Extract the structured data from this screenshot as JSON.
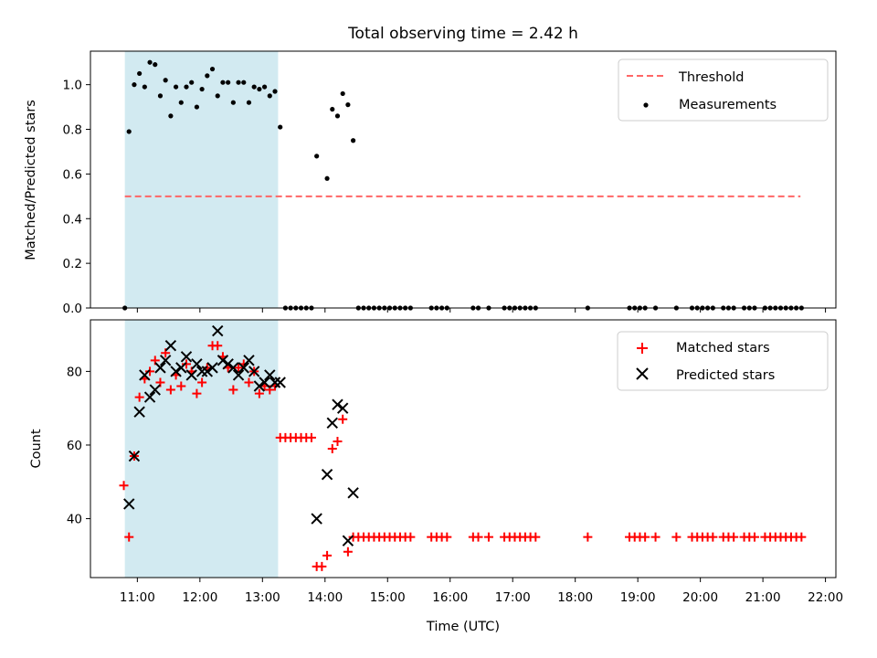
{
  "chart_data": [
    {
      "type": "scatter",
      "title": "Total observing time = 2.42 h",
      "ylabel": "Matched/Predicted stars",
      "xlabel": "",
      "xlim": [
        "10:15",
        "22:10"
      ],
      "ylim": [
        0,
        1.15
      ],
      "yticks": [
        "0.0",
        "0.2",
        "0.4",
        "0.6",
        "0.8",
        "1.0"
      ],
      "legend_position": "top-right",
      "highlight_span": {
        "from": "10:48",
        "to": "13:15",
        "color": "#add8e6"
      },
      "threshold": {
        "label": "Threshold",
        "value": 0.5,
        "from": "10:48",
        "to": "21:36",
        "color": "#ff6666"
      },
      "series": [
        {
          "name": "Measurements",
          "color": "#000000",
          "marker": "dot",
          "points": [
            [
              "10:48",
              0
            ],
            [
              "10:52",
              0.79
            ],
            [
              "10:57",
              1.0
            ],
            [
              "11:02",
              1.05
            ],
            [
              "11:07",
              0.99
            ],
            [
              "11:12",
              1.1
            ],
            [
              "11:17",
              1.09
            ],
            [
              "11:22",
              0.95
            ],
            [
              "11:27",
              1.02
            ],
            [
              "11:32",
              0.86
            ],
            [
              "11:37",
              0.99
            ],
            [
              "11:42",
              0.92
            ],
            [
              "11:47",
              0.99
            ],
            [
              "11:52",
              1.01
            ],
            [
              "11:57",
              0.9
            ],
            [
              "12:02",
              0.98
            ],
            [
              "12:07",
              1.04
            ],
            [
              "12:12",
              1.07
            ],
            [
              "12:17",
              0.95
            ],
            [
              "12:22",
              1.01
            ],
            [
              "12:27",
              1.01
            ],
            [
              "12:32",
              0.92
            ],
            [
              "12:37",
              1.01
            ],
            [
              "12:42",
              1.01
            ],
            [
              "12:47",
              0.92
            ],
            [
              "12:52",
              0.99
            ],
            [
              "12:57",
              0.98
            ],
            [
              "13:02",
              0.99
            ],
            [
              "13:07",
              0.95
            ],
            [
              "13:12",
              0.97
            ],
            [
              "13:17",
              0.81
            ],
            [
              "13:22",
              0
            ],
            [
              "13:27",
              0
            ],
            [
              "13:32",
              0
            ],
            [
              "13:37",
              0
            ],
            [
              "13:42",
              0
            ],
            [
              "13:47",
              0
            ],
            [
              "13:52",
              0.68
            ],
            [
              "14:02",
              0.58
            ],
            [
              "14:07",
              0.89
            ],
            [
              "14:12",
              0.86
            ],
            [
              "14:17",
              0.96
            ],
            [
              "14:22",
              0.91
            ],
            [
              "14:27",
              0.75
            ],
            [
              "14:32",
              0
            ],
            [
              "14:37",
              0
            ],
            [
              "14:42",
              0
            ],
            [
              "14:47",
              0
            ],
            [
              "14:52",
              0
            ],
            [
              "14:57",
              0
            ],
            [
              "15:02",
              0
            ],
            [
              "15:07",
              0
            ],
            [
              "15:12",
              0
            ],
            [
              "15:17",
              0
            ],
            [
              "15:22",
              0
            ],
            [
              "15:42",
              0
            ],
            [
              "15:47",
              0
            ],
            [
              "15:52",
              0
            ],
            [
              "15:57",
              0
            ],
            [
              "16:22",
              0
            ],
            [
              "16:27",
              0
            ],
            [
              "16:37",
              0
            ],
            [
              "16:52",
              0
            ],
            [
              "16:57",
              0
            ],
            [
              "17:02",
              0
            ],
            [
              "17:07",
              0
            ],
            [
              "17:12",
              0
            ],
            [
              "17:17",
              0
            ],
            [
              "17:22",
              0
            ],
            [
              "18:12",
              0
            ],
            [
              "18:52",
              0
            ],
            [
              "18:57",
              0
            ],
            [
              "19:02",
              0
            ],
            [
              "19:07",
              0
            ],
            [
              "19:17",
              0
            ],
            [
              "19:37",
              0
            ],
            [
              "19:52",
              0
            ],
            [
              "19:57",
              0
            ],
            [
              "20:02",
              0
            ],
            [
              "20:07",
              0
            ],
            [
              "20:12",
              0
            ],
            [
              "20:22",
              0
            ],
            [
              "20:27",
              0
            ],
            [
              "20:32",
              0
            ],
            [
              "20:42",
              0
            ],
            [
              "20:47",
              0
            ],
            [
              "20:52",
              0
            ],
            [
              "21:02",
              0
            ],
            [
              "21:07",
              0
            ],
            [
              "21:12",
              0
            ],
            [
              "21:17",
              0
            ],
            [
              "21:22",
              0
            ],
            [
              "21:27",
              0
            ],
            [
              "21:32",
              0
            ],
            [
              "21:37",
              0
            ]
          ]
        }
      ]
    },
    {
      "type": "scatter",
      "title": "",
      "xlabel": "Time (UTC)",
      "ylabel": "Count",
      "xlim": [
        "10:15",
        "22:10"
      ],
      "ylim": [
        24,
        94
      ],
      "xticks": [
        "11:00",
        "12:00",
        "13:00",
        "14:00",
        "15:00",
        "16:00",
        "17:00",
        "18:00",
        "19:00",
        "20:00",
        "21:00",
        "22:00"
      ],
      "yticks": [
        "40",
        "60",
        "80"
      ],
      "legend_position": "top-right",
      "highlight_span": {
        "from": "10:48",
        "to": "13:15",
        "color": "#add8e6"
      },
      "series": [
        {
          "name": "Matched stars",
          "color": "#ff0000",
          "marker": "plus",
          "points": [
            [
              "10:47",
              49
            ],
            [
              "10:52",
              35
            ],
            [
              "10:57",
              57
            ],
            [
              "11:02",
              73
            ],
            [
              "11:07",
              78
            ],
            [
              "11:12",
              80
            ],
            [
              "11:17",
              83
            ],
            [
              "11:22",
              77
            ],
            [
              "11:27",
              85
            ],
            [
              "11:32",
              75
            ],
            [
              "11:37",
              79
            ],
            [
              "11:42",
              76
            ],
            [
              "11:47",
              82
            ],
            [
              "11:52",
              80
            ],
            [
              "11:57",
              74
            ],
            [
              "12:02",
              77
            ],
            [
              "12:07",
              81
            ],
            [
              "12:12",
              87
            ],
            [
              "12:17",
              87
            ],
            [
              "12:22",
              84
            ],
            [
              "12:27",
              81
            ],
            [
              "12:32",
              75
            ],
            [
              "12:37",
              81
            ],
            [
              "12:42",
              82
            ],
            [
              "12:47",
              77
            ],
            [
              "12:52",
              80
            ],
            [
              "12:57",
              74
            ],
            [
              "13:02",
              76
            ],
            [
              "13:07",
              75
            ],
            [
              "13:12",
              76
            ],
            [
              "13:17",
              62
            ],
            [
              "13:22",
              62
            ],
            [
              "13:27",
              62
            ],
            [
              "13:32",
              62
            ],
            [
              "13:37",
              62
            ],
            [
              "13:42",
              62
            ],
            [
              "13:47",
              62
            ],
            [
              "13:52",
              27
            ],
            [
              "13:57",
              27
            ],
            [
              "14:02",
              30
            ],
            [
              "14:07",
              59
            ],
            [
              "14:12",
              61
            ],
            [
              "14:17",
              67
            ],
            [
              "14:22",
              31
            ],
            [
              "14:27",
              35
            ],
            [
              "14:32",
              35
            ],
            [
              "14:37",
              35
            ],
            [
              "14:42",
              35
            ],
            [
              "14:47",
              35
            ],
            [
              "14:52",
              35
            ],
            [
              "14:57",
              35
            ],
            [
              "15:02",
              35
            ],
            [
              "15:07",
              35
            ],
            [
              "15:12",
              35
            ],
            [
              "15:17",
              35
            ],
            [
              "15:22",
              35
            ],
            [
              "15:42",
              35
            ],
            [
              "15:47",
              35
            ],
            [
              "15:52",
              35
            ],
            [
              "15:57",
              35
            ],
            [
              "16:22",
              35
            ],
            [
              "16:27",
              35
            ],
            [
              "16:37",
              35
            ],
            [
              "16:52",
              35
            ],
            [
              "16:57",
              35
            ],
            [
              "17:02",
              35
            ],
            [
              "17:07",
              35
            ],
            [
              "17:12",
              35
            ],
            [
              "17:17",
              35
            ],
            [
              "17:22",
              35
            ],
            [
              "18:12",
              35
            ],
            [
              "18:52",
              35
            ],
            [
              "18:57",
              35
            ],
            [
              "19:02",
              35
            ],
            [
              "19:07",
              35
            ],
            [
              "19:17",
              35
            ],
            [
              "19:37",
              35
            ],
            [
              "19:52",
              35
            ],
            [
              "19:57",
              35
            ],
            [
              "20:02",
              35
            ],
            [
              "20:07",
              35
            ],
            [
              "20:12",
              35
            ],
            [
              "20:22",
              35
            ],
            [
              "20:27",
              35
            ],
            [
              "20:32",
              35
            ],
            [
              "20:42",
              35
            ],
            [
              "20:47",
              35
            ],
            [
              "20:52",
              35
            ],
            [
              "21:02",
              35
            ],
            [
              "21:07",
              35
            ],
            [
              "21:12",
              35
            ],
            [
              "21:17",
              35
            ],
            [
              "21:22",
              35
            ],
            [
              "21:27",
              35
            ],
            [
              "21:32",
              35
            ],
            [
              "21:37",
              35
            ]
          ]
        },
        {
          "name": "Predicted stars",
          "color": "#000000",
          "marker": "x",
          "points": [
            [
              "10:52",
              44
            ],
            [
              "10:57",
              57
            ],
            [
              "11:02",
              69
            ],
            [
              "11:07",
              79
            ],
            [
              "11:12",
              73
            ],
            [
              "11:17",
              75
            ],
            [
              "11:22",
              81
            ],
            [
              "11:27",
              83
            ],
            [
              "11:32",
              87
            ],
            [
              "11:37",
              80
            ],
            [
              "11:42",
              81
            ],
            [
              "11:47",
              84
            ],
            [
              "11:52",
              79
            ],
            [
              "11:57",
              82
            ],
            [
              "12:02",
              80
            ],
            [
              "12:07",
              80
            ],
            [
              "12:12",
              81
            ],
            [
              "12:17",
              91
            ],
            [
              "12:22",
              83
            ],
            [
              "12:27",
              82
            ],
            [
              "12:32",
              81
            ],
            [
              "12:37",
              79
            ],
            [
              "12:42",
              81
            ],
            [
              "12:47",
              83
            ],
            [
              "12:52",
              80
            ],
            [
              "12:57",
              76
            ],
            [
              "13:02",
              77
            ],
            [
              "13:07",
              79
            ],
            [
              "13:12",
              77
            ],
            [
              "13:17",
              77
            ],
            [
              "13:52",
              40
            ],
            [
              "14:02",
              52
            ],
            [
              "14:07",
              66
            ],
            [
              "14:12",
              71
            ],
            [
              "14:17",
              70
            ],
            [
              "14:22",
              34
            ],
            [
              "14:27",
              47
            ]
          ]
        }
      ]
    }
  ]
}
